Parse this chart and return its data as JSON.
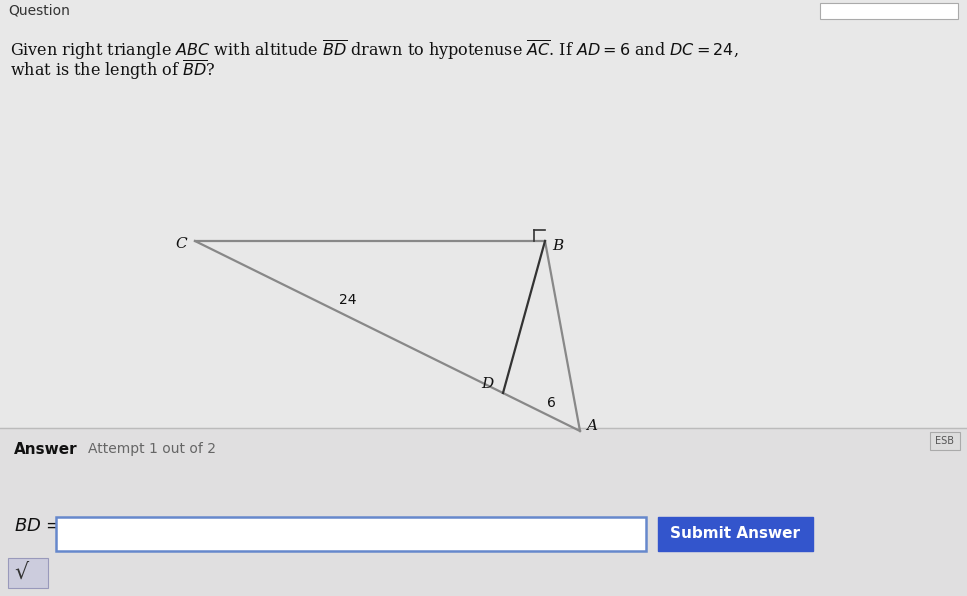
{
  "bg_color": "#e8e8e8",
  "main_bg": "#f0efee",
  "answer_section_color": "#e0dfe0",
  "question_line1": "Given right triangle $ABC$ with altitude $\\overline{BD}$ drawn to hypotenuse $\\overline{AC}$. If $AD = 6$ and $DC = 24$,",
  "question_line2": "what is the length of $\\overline{BD}$?",
  "submit_text": "Submit Answer",
  "submit_color": "#3355cc",
  "input_border_color": "#6688cc",
  "input_bg": "#ffffff",
  "triangle_color": "#888888",
  "altitude_color": "#333333",
  "sq_color": "#333333",
  "label_A": "A",
  "label_B": "B",
  "label_C": "C",
  "label_D": "D",
  "label_24": "24",
  "label_6": "6",
  "C": [
    195,
    355
  ],
  "B": [
    545,
    355
  ],
  "A": [
    580,
    165
  ]
}
